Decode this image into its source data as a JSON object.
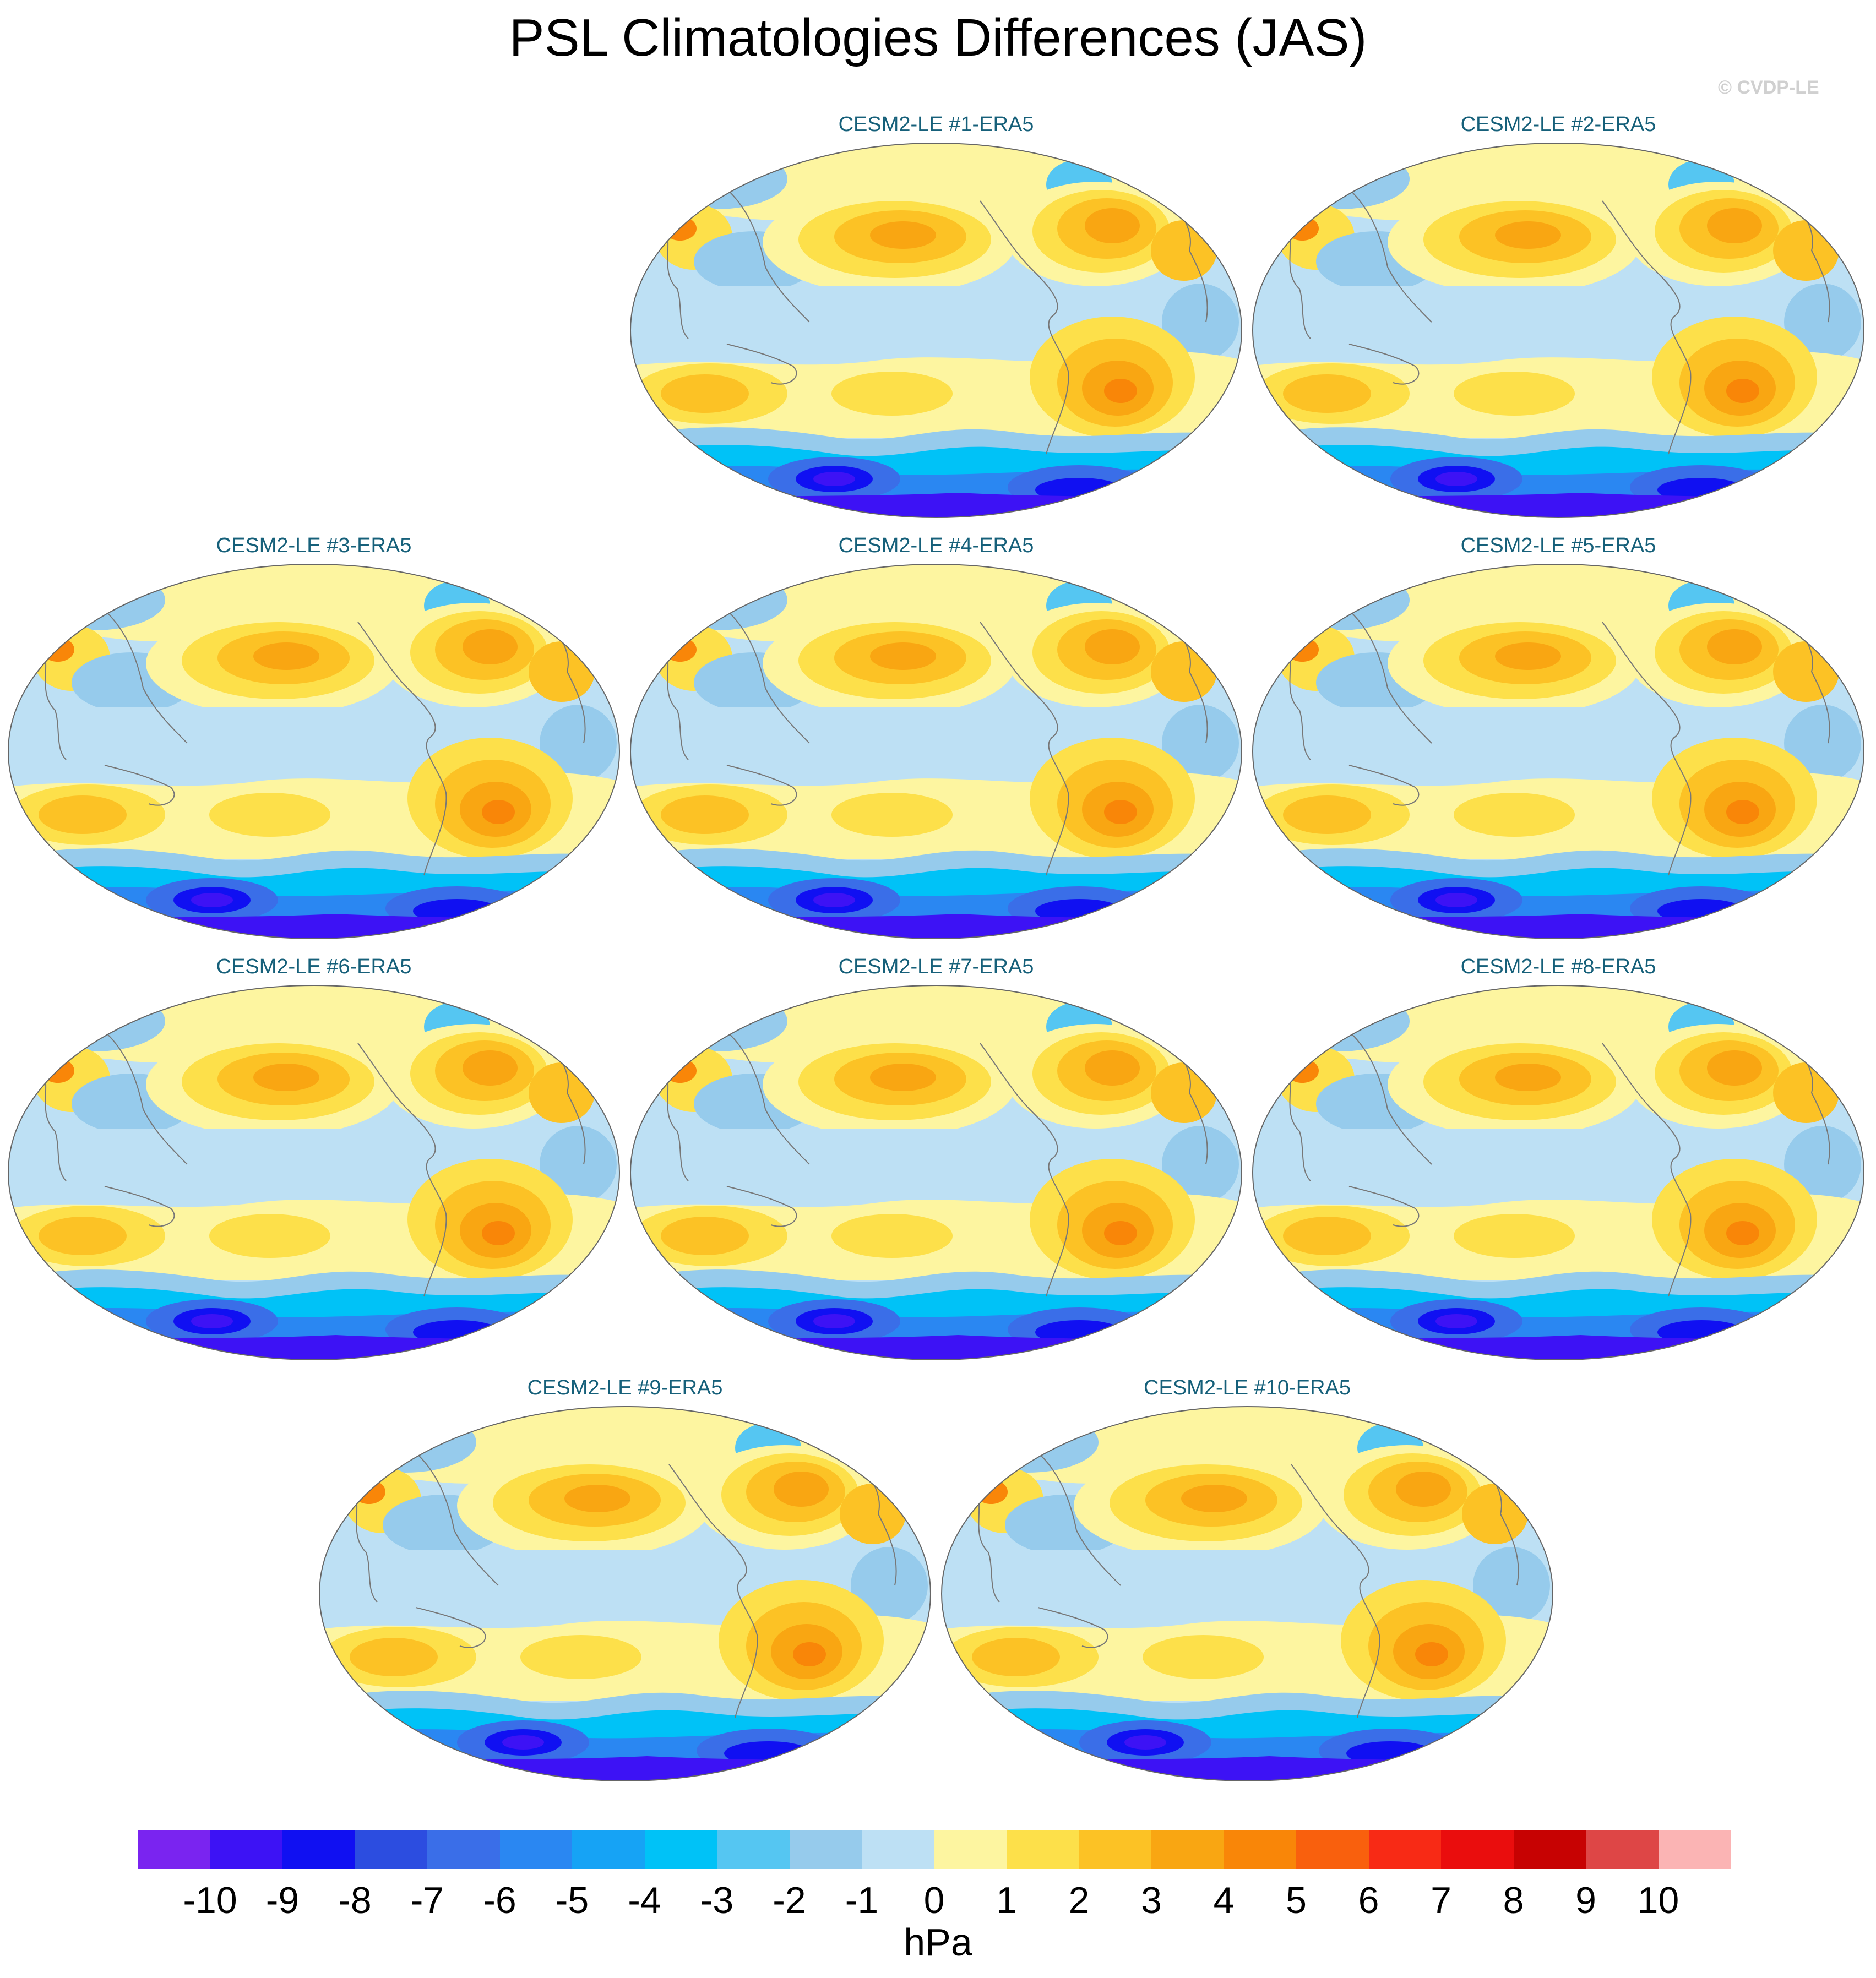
{
  "title": "PSL Climatologies Differences (JAS)",
  "credit": "© CVDP-LE",
  "panels": [
    {
      "id": 1,
      "label": "CESM2-LE #1-ERA5"
    },
    {
      "id": 2,
      "label": "CESM2-LE #2-ERA5"
    },
    {
      "id": 3,
      "label": "CESM2-LE #3-ERA5"
    },
    {
      "id": 4,
      "label": "CESM2-LE #4-ERA5"
    },
    {
      "id": 5,
      "label": "CESM2-LE #5-ERA5"
    },
    {
      "id": 6,
      "label": "CESM2-LE #6-ERA5"
    },
    {
      "id": 7,
      "label": "CESM2-LE #7-ERA5"
    },
    {
      "id": 8,
      "label": "CESM2-LE #8-ERA5"
    },
    {
      "id": 9,
      "label": "CESM2-LE #9-ERA5"
    },
    {
      "id": 10,
      "label": "CESM2-LE #10-ERA5"
    }
  ],
  "colorbar": {
    "units": "hPa",
    "labels": [
      "-10",
      "-9",
      "-8",
      "-7",
      "-6",
      "-5",
      "-4",
      "-3",
      "-2",
      "-1",
      "0",
      "1",
      "2",
      "3",
      "4",
      "5",
      "6",
      "7",
      "8",
      "9",
      "10"
    ],
    "colors": [
      "#7a24f0",
      "#3d12f5",
      "#1010f2",
      "#2c4de0",
      "#3a6ee8",
      "#2a87f2",
      "#16a3f5",
      "#00c2f7",
      "#55c6f2",
      "#96cbec",
      "#bde0f4",
      "#fdf5a0",
      "#fde04a",
      "#fcc225",
      "#f9a612",
      "#f98608",
      "#f9600d",
      "#f82a15",
      "#ea0d0d",
      "#c70202",
      "#de4646",
      "#fbb4b4"
    ]
  },
  "map_colors": {
    "ocean_base": "#bde0f4",
    "coast": "#777777",
    "border": "#666666"
  }
}
